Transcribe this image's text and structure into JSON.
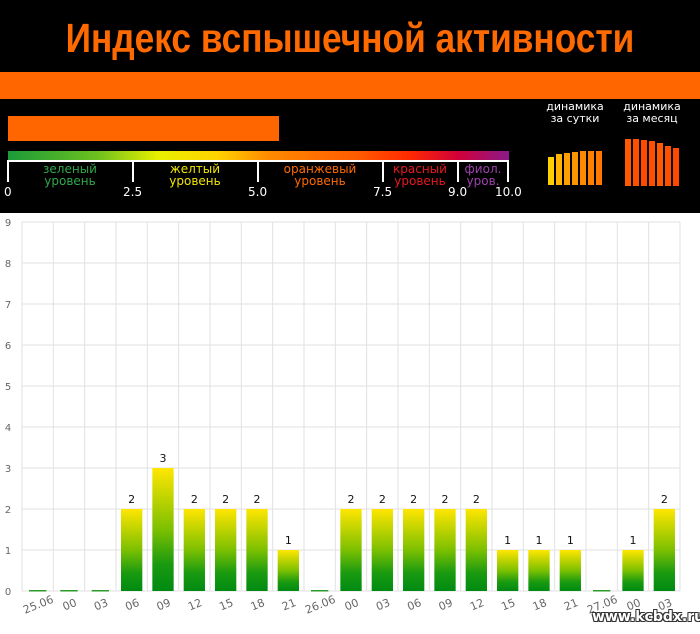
{
  "header": {
    "title": "Индекс вспышечной активности",
    "current_index": 5.4,
    "dynamics_day_label": "динамика за сутки",
    "dynamics_month_label": "динамика за месяц"
  },
  "scale": {
    "ticks": [
      "0",
      "2.5",
      "5.0",
      "7.5",
      "9.0",
      "10.0"
    ],
    "levels": [
      {
        "name": "зеленый уровень",
        "color": "#2fa84a"
      },
      {
        "name": "желтый уровень",
        "color": "#f2e600"
      },
      {
        "name": "оранжевый уровень",
        "color": "#ff6a00"
      },
      {
        "name": "красный уровень",
        "color": "#e8171e"
      },
      {
        "name": "фиол. уров.",
        "color": "#a040b0"
      }
    ]
  },
  "colors": {
    "brand_orange": "#ff6600",
    "bar_top": "#ffe600",
    "bar_bottom": "#008a12"
  },
  "watermark": "www.kcbdx.ru",
  "chart_data": {
    "type": "bar",
    "title": "",
    "xlabel": "",
    "ylabel": "",
    "ylim": [
      0,
      9
    ],
    "yticks": [
      "0",
      "1",
      "2",
      "3",
      "4",
      "5",
      "6",
      "7",
      "8",
      "9"
    ],
    "grid": true,
    "categories": [
      "25.06",
      "00",
      "03",
      "06",
      "09",
      "12",
      "15",
      "18",
      "21",
      "26.06",
      "00",
      "03",
      "06",
      "09",
      "12",
      "15",
      "18",
      "21",
      "27.06",
      "00",
      "03"
    ],
    "values": [
      0,
      0,
      0,
      2,
      3,
      2,
      2,
      2,
      1,
      0,
      2,
      2,
      2,
      2,
      2,
      1,
      1,
      1,
      0,
      1,
      2
    ]
  }
}
